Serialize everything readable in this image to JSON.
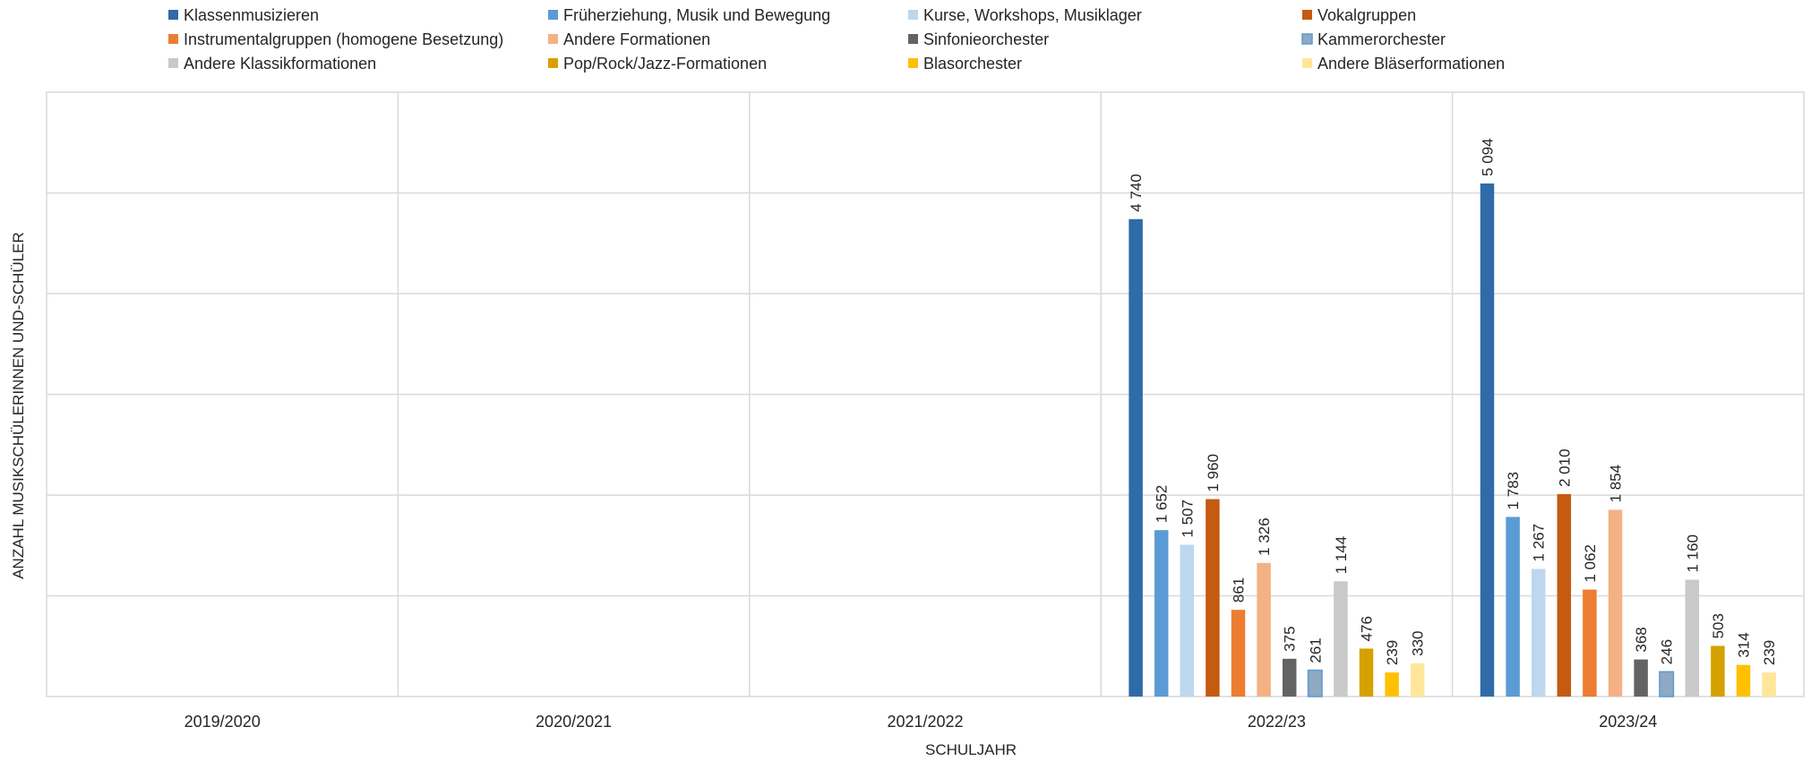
{
  "chart_data": {
    "type": "bar",
    "title": "",
    "xlabel": "SCHULJAHR",
    "ylabel": "ANZAHL MUSIKSCHÜLERINNEN UND-SCHÜLER",
    "categories": [
      "2019/2020",
      "2020/2021",
      "2021/2022",
      "2022/23",
      "2023/24"
    ],
    "ylim": [
      0,
      6000
    ],
    "grid": true,
    "legend_position": "top",
    "series": [
      {
        "name": "Klassenmusizieren",
        "color": "#2E6BA8",
        "values": [
          null,
          null,
          null,
          4740,
          5094
        ]
      },
      {
        "name": "Früherziehung, Musik und Bewegung",
        "color": "#5B9BD5",
        "values": [
          null,
          null,
          null,
          1652,
          1783
        ]
      },
      {
        "name": "Kurse, Workshops, Musiklager",
        "color": "#BDD7EE",
        "values": [
          null,
          null,
          null,
          1507,
          1267
        ]
      },
      {
        "name": "Vokalgruppen",
        "color": "#C55A11",
        "values": [
          null,
          null,
          null,
          1960,
          2010
        ]
      },
      {
        "name": "Instrumentalgruppen (homogene Besetzung)",
        "color": "#ED7D31",
        "values": [
          null,
          null,
          null,
          861,
          1062
        ]
      },
      {
        "name": "Andere Formationen",
        "color": "#F4B183",
        "values": [
          null,
          null,
          null,
          1326,
          1854
        ]
      },
      {
        "name": "Sinfonieorchester",
        "color": "#636363",
        "values": [
          null,
          null,
          null,
          375,
          368
        ]
      },
      {
        "name": "Kammerorchester",
        "color": "#8EA9C1",
        "values": [
          null,
          null,
          null,
          261,
          246
        ]
      },
      {
        "name": "Andere Klassikformationen",
        "color": "#C9C9C9",
        "values": [
          null,
          null,
          null,
          1144,
          1160
        ]
      },
      {
        "name": "Pop/Rock/Jazz-Formationen",
        "color": "#D6A100",
        "values": [
          null,
          null,
          null,
          476,
          503
        ]
      },
      {
        "name": "Blasorchester",
        "color": "#FFC000",
        "values": [
          null,
          null,
          null,
          239,
          314
        ]
      },
      {
        "name": "Andere Bläserformationen",
        "color": "#FFE699",
        "values": [
          null,
          null,
          null,
          330,
          239
        ]
      }
    ],
    "data_labels": [
      [
        null,
        null,
        null,
        "4 740",
        "5 094"
      ],
      [
        null,
        null,
        null,
        "1 652",
        "1 783"
      ],
      [
        null,
        null,
        null,
        "1 507",
        "1 267"
      ],
      [
        null,
        null,
        null,
        "1 960",
        "2 010"
      ],
      [
        null,
        null,
        null,
        "861",
        "1 062"
      ],
      [
        null,
        null,
        null,
        "1 326",
        "1 854"
      ],
      [
        null,
        null,
        null,
        "375",
        "368"
      ],
      [
        null,
        null,
        null,
        "261",
        "246"
      ],
      [
        null,
        null,
        null,
        "1 144",
        "1 160"
      ],
      [
        null,
        null,
        null,
        "476",
        "503"
      ],
      [
        null,
        null,
        null,
        "239",
        "314"
      ],
      [
        null,
        null,
        null,
        "330",
        "239"
      ]
    ],
    "kammerorchester_border": "#5B9BD5",
    "gridline_color": "#D9D9D9"
  }
}
